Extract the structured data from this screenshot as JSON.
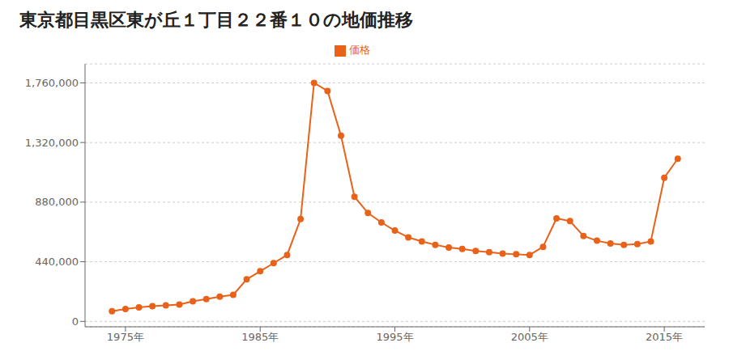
{
  "chart_data": {
    "type": "line",
    "title": "東京都目黒区東が丘１丁目２２番１０の地価推移",
    "x": [
      1974,
      1975,
      1976,
      1977,
      1978,
      1979,
      1980,
      1981,
      1982,
      1983,
      1984,
      1985,
      1986,
      1987,
      1988,
      1989,
      1990,
      1991,
      1992,
      1993,
      1994,
      1995,
      1996,
      1997,
      1998,
      1999,
      2000,
      2001,
      2002,
      2003,
      2004,
      2005,
      2006,
      2007,
      2008,
      2009,
      2010,
      2011,
      2012,
      2013,
      2014,
      2015,
      2016
    ],
    "series": [
      {
        "name": "価格",
        "color": "#E8621A",
        "marker": "o",
        "values": [
          75000,
          91000,
          103000,
          112000,
          118000,
          124000,
          148000,
          165000,
          182000,
          196000,
          310000,
          370000,
          430000,
          490000,
          755000,
          1760000,
          1700000,
          1370000,
          920000,
          800000,
          730000,
          670000,
          620000,
          590000,
          565000,
          545000,
          535000,
          520000,
          510000,
          500000,
          495000,
          490000,
          550000,
          760000,
          740000,
          630000,
          595000,
          575000,
          565000,
          570000,
          590000,
          1060000,
          1200000
        ]
      }
    ],
    "xlim": [
      1972,
      2018
    ],
    "xticks": [
      {
        "value": 1975,
        "label": "1975年"
      },
      {
        "value": 1985,
        "label": "1985年"
      },
      {
        "value": 1995,
        "label": "1995年"
      },
      {
        "value": 2005,
        "label": "2005年"
      },
      {
        "value": 2015,
        "label": "2015年"
      }
    ],
    "ylim": [
      -40000,
      1900000
    ],
    "yticks": [
      0,
      {
        "value": 440000,
        "label": "440,000"
      },
      {
        "value": 880000,
        "label": "880,000"
      },
      {
        "value": 1320000,
        "label": "1,320,000"
      },
      {
        "value": 1760000,
        "label": "1,760,000"
      }
    ],
    "grid": "y",
    "legend": "top"
  }
}
